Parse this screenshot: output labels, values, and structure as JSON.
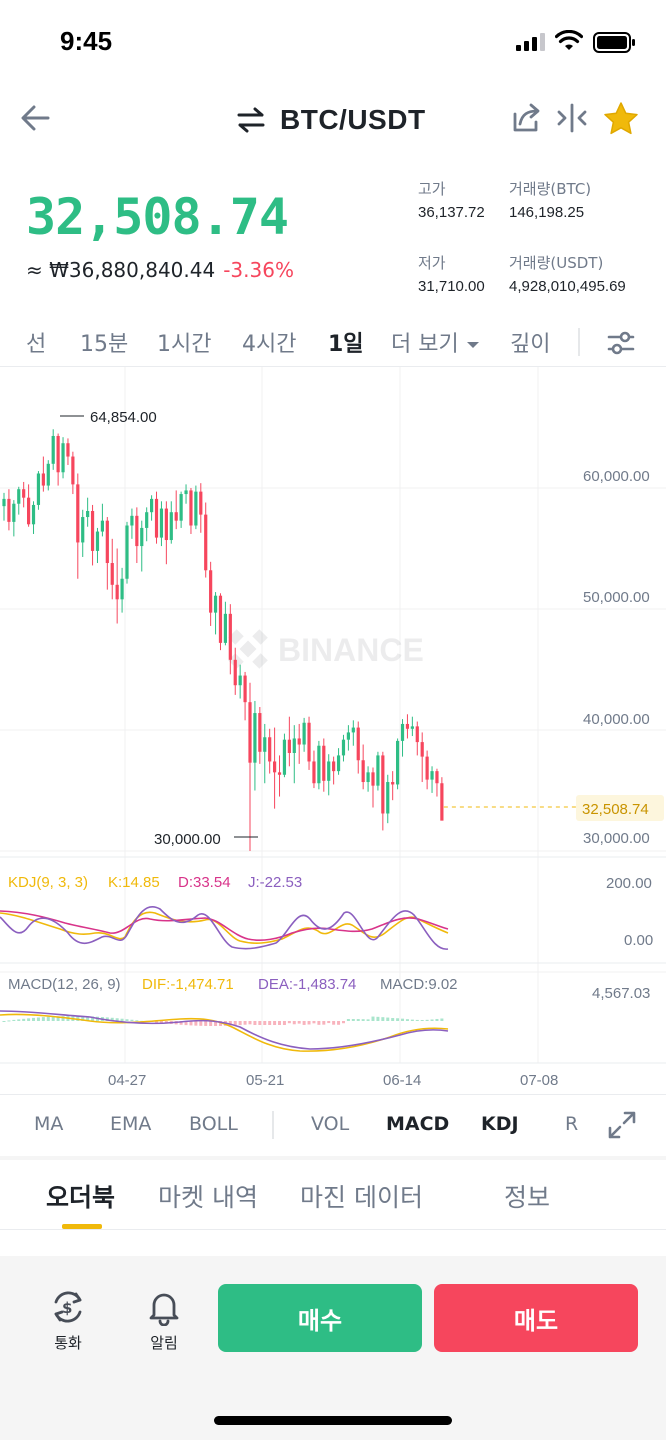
{
  "status_bar": {
    "time": "9:45"
  },
  "header": {
    "pair": "BTC/USDT",
    "icons": [
      "back-arrow-icon",
      "swap-icon",
      "share-icon",
      "compare-icon",
      "favorite-star-icon"
    ],
    "star_color": "#f0b90b"
  },
  "price": {
    "last": "32,508.74",
    "krw": "≈ ₩36,880,840.44",
    "change_pct": "-3.36%",
    "up_color": "#2ebd85",
    "down_color": "#f6465d"
  },
  "stats": {
    "high_label": "고가",
    "high_value": "36,137.72",
    "vol_btc_label": "거래량(BTC)",
    "vol_btc_value": "146,198.25",
    "low_label": "저가",
    "low_value": "31,710.00",
    "vol_usdt_label": "거래량(USDT)",
    "vol_usdt_value": "4,928,010,495.69"
  },
  "timeframes": {
    "line": "선",
    "m15": "15분",
    "h1": "1시간",
    "h4": "4시간",
    "d1": "1일",
    "more": "더 보기",
    "depth": "깊이",
    "active": "1일"
  },
  "chart": {
    "watermark": "BINANCE",
    "max_marker": "64,854.00",
    "min_marker": "30,000.00",
    "price_axis": [
      "60,000.00",
      "50,000.00",
      "40,000.00",
      "30,000.00"
    ],
    "current_price_tag": "32,508.74",
    "kdj_label": "KDJ(9, 3, 3)",
    "kdj_k": "K:14.85",
    "kdj_d": "D:33.54",
    "kdj_j": "J:-22.53",
    "kdj_axis": [
      "200.00",
      "0.00"
    ],
    "macd_label": "MACD(12, 26, 9)",
    "macd_dif": "DIF:-1,474.71",
    "macd_dea": "DEA:-1,483.74",
    "macd_val": "MACD:9.02",
    "macd_axis": "4,567.03",
    "dates": [
      "04-27",
      "05-21",
      "06-14",
      "07-08"
    ]
  },
  "chart_data": {
    "type": "candlestick",
    "title": "BTC/USDT",
    "interval": "1일",
    "ylim": [
      28000,
      68000
    ],
    "x_ticks": [
      "04-27",
      "05-21",
      "06-14",
      "07-08"
    ],
    "y_ticks": [
      30000,
      40000,
      50000,
      60000
    ],
    "max": 64854.0,
    "min": 30000.0,
    "last": 32508.74,
    "series": [
      {
        "values": [
          [
            58500,
            59600,
            57300,
            59100
          ],
          [
            59100,
            59900,
            56500,
            57200
          ],
          [
            57200,
            59000,
            56000,
            58700
          ],
          [
            58700,
            60100,
            57800,
            59900
          ],
          [
            59900,
            60500,
            58400,
            59200
          ],
          [
            59200,
            60300,
            56800,
            57000
          ],
          [
            57000,
            58900,
            56200,
            58600
          ],
          [
            58600,
            61400,
            58200,
            61200
          ],
          [
            61200,
            62600,
            59700,
            60200
          ],
          [
            60200,
            62300,
            59800,
            62000
          ],
          [
            62000,
            64854,
            61500,
            64300
          ],
          [
            64300,
            64500,
            60200,
            61300
          ],
          [
            61300,
            64200,
            60800,
            63700
          ],
          [
            63700,
            64100,
            61900,
            62600
          ],
          [
            62600,
            63000,
            59500,
            60300
          ],
          [
            60300,
            61200,
            52500,
            55500
          ],
          [
            55500,
            58200,
            54300,
            57600
          ],
          [
            57600,
            59200,
            56800,
            58100
          ],
          [
            58100,
            58600,
            53600,
            54800
          ],
          [
            54800,
            56700,
            53800,
            56400
          ],
          [
            56400,
            58700,
            56000,
            57300
          ],
          [
            57300,
            57600,
            51600,
            53800
          ],
          [
            53800,
            55800,
            50800,
            52000
          ],
          [
            52000,
            55000,
            48800,
            50800
          ],
          [
            50800,
            53400,
            49700,
            52500
          ],
          [
            52500,
            57200,
            52100,
            56900
          ],
          [
            56900,
            58300,
            55800,
            57700
          ],
          [
            57700,
            58400,
            53800,
            55200
          ],
          [
            55200,
            57300,
            53100,
            56700
          ],
          [
            56700,
            58400,
            55600,
            58000
          ],
          [
            58000,
            59400,
            57300,
            59100
          ],
          [
            59100,
            59700,
            55400,
            55900
          ],
          [
            55900,
            58900,
            55200,
            58300
          ],
          [
            58300,
            58900,
            53700,
            55700
          ],
          [
            55700,
            58900,
            55400,
            58000
          ],
          [
            58000,
            59800,
            56600,
            57300
          ],
          [
            57300,
            59700,
            56700,
            59500
          ],
          [
            59500,
            60300,
            58700,
            59800
          ],
          [
            59800,
            60000,
            56200,
            56900
          ],
          [
            56900,
            60200,
            56600,
            59700
          ],
          [
            59700,
            60400,
            56300,
            57800
          ],
          [
            57800,
            58800,
            52600,
            53200
          ],
          [
            53200,
            53900,
            48600,
            49700
          ],
          [
            49700,
            51400,
            47900,
            51100
          ],
          [
            51100,
            51300,
            46600,
            47200
          ],
          [
            47200,
            50600,
            47000,
            49600
          ],
          [
            49600,
            50400,
            44600,
            45800
          ],
          [
            45800,
            46800,
            42900,
            43700
          ],
          [
            43700,
            45400,
            42600,
            44500
          ],
          [
            44500,
            44800,
            40800,
            42300
          ],
          [
            42300,
            43900,
            30000,
            37300
          ],
          [
            37300,
            42400,
            35000,
            41400
          ],
          [
            41400,
            41900,
            37200,
            38200
          ],
          [
            38200,
            40500,
            35600,
            39400
          ],
          [
            39400,
            40100,
            36400,
            37400
          ],
          [
            37400,
            40200,
            33500,
            36500
          ],
          [
            36500,
            37900,
            34500,
            36300
          ],
          [
            36300,
            39700,
            36100,
            39200
          ],
          [
            39200,
            41100,
            37000,
            38100
          ],
          [
            38100,
            40400,
            35600,
            39300
          ],
          [
            39300,
            40500,
            37200,
            38800
          ],
          [
            38800,
            41000,
            38200,
            40600
          ],
          [
            40600,
            41100,
            36700,
            37400
          ],
          [
            37400,
            38300,
            35200,
            35600
          ],
          [
            35600,
            39100,
            35100,
            38700
          ],
          [
            38700,
            39300,
            34900,
            35800
          ],
          [
            35800,
            38000,
            34600,
            37400
          ],
          [
            37400,
            37800,
            35500,
            36600
          ],
          [
            36600,
            38500,
            36300,
            37900
          ],
          [
            37900,
            39600,
            37400,
            39200
          ],
          [
            39200,
            40400,
            38300,
            39800
          ],
          [
            39800,
            40800,
            38700,
            40200
          ],
          [
            40200,
            40700,
            36400,
            37500
          ],
          [
            37500,
            38800,
            35100,
            35700
          ],
          [
            35700,
            37000,
            34900,
            36500
          ],
          [
            36500,
            36900,
            33600,
            35400
          ],
          [
            35400,
            38200,
            35000,
            37900
          ],
          [
            37900,
            38200,
            31700,
            33100
          ],
          [
            33100,
            36300,
            32300,
            35700
          ],
          [
            35700,
            36600,
            34200,
            35500
          ],
          [
            35500,
            39300,
            35100,
            39100
          ],
          [
            39100,
            40900,
            37800,
            40500
          ],
          [
            40500,
            41300,
            39300,
            40100
          ],
          [
            40100,
            41100,
            39500,
            40300
          ],
          [
            40300,
            40700,
            37900,
            39000
          ],
          [
            39000,
            39800,
            35700,
            37800
          ],
          [
            37800,
            38300,
            35100,
            35900
          ],
          [
            35900,
            37000,
            34800,
            36600
          ],
          [
            36600,
            36800,
            34500,
            35600
          ],
          [
            35600,
            36100,
            32600,
            32509
          ]
        ]
      }
    ],
    "indicators": {
      "kdj": {
        "params": "9, 3, 3",
        "K": 14.85,
        "D": 33.54,
        "J": -22.53
      },
      "macd": {
        "params": "12, 26, 9",
        "DIF": -1474.71,
        "DEA": -1483.74,
        "MACD": 9.02
      }
    }
  },
  "indicators_bar": {
    "ma": "MA",
    "ema": "EMA",
    "boll": "BOLL",
    "vol": "VOL",
    "macd": "MACD",
    "kdj": "KDJ",
    "rsi": "R"
  },
  "bottom_tabs": {
    "orderbook": "오더북",
    "market_trades": "마켓 내역",
    "margin_data": "마진 데이터",
    "info": "정보"
  },
  "action_bar": {
    "convert_label": "통화",
    "alert_label": "알림",
    "buy_label": "매수",
    "sell_label": "매도"
  }
}
